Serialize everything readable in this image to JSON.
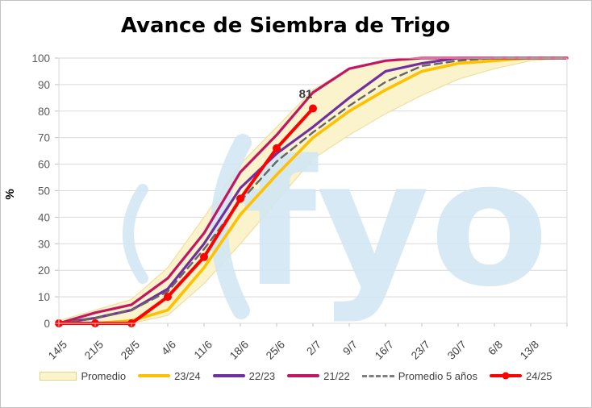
{
  "title": "Avance de Siembra de Trigo",
  "watermark": {
    "text": "fyo",
    "color": "#D3E7F3"
  },
  "annotation": {
    "text": "81",
    "series": "24/25",
    "category": "2/7",
    "value": 81
  },
  "colors": {
    "gridline": "#D9D9D9",
    "plot_border": "#D9D9D9",
    "axis_tick": "#BFBFBF",
    "y_tick_text": "#595959",
    "x_tick_text": "#404040",
    "annotation_text": "#3a3a3a"
  },
  "legend": {
    "items": [
      {
        "label": "Promedio",
        "swatch": "band",
        "color": "#FBF3CC",
        "border": "#E3D48A"
      },
      {
        "label": "23/24",
        "swatch": "line",
        "color": "#FFC000"
      },
      {
        "label": "22/23",
        "swatch": "line",
        "color": "#7030A0"
      },
      {
        "label": "21/22",
        "swatch": "line",
        "color": "#C31662"
      },
      {
        "label": "Promedio 5 años",
        "swatch": "dashed",
        "color": "#7F7F7F"
      },
      {
        "label": "24/25",
        "swatch": "line-marker",
        "color": "#FF0000"
      }
    ]
  },
  "chart_data": {
    "type": "line",
    "title": "Avance de Siembra de Trigo",
    "xlabel": "",
    "ylabel": "%",
    "ylim": [
      0,
      100
    ],
    "y_ticks": [
      0,
      10,
      20,
      30,
      40,
      50,
      60,
      70,
      80,
      90,
      100
    ],
    "grid": true,
    "legend_position": "bottom",
    "categories": [
      "14/5",
      "21/5",
      "28/5",
      "4/6",
      "11/6",
      "18/6",
      "25/6",
      "2/7",
      "9/7",
      "16/7",
      "23/7",
      "30/7",
      "6/8",
      "13/8",
      ""
    ],
    "note": "last category is the unlabeled plot right edge where all series reach 100",
    "series": [
      {
        "name": "Promedio",
        "type": "band",
        "fill": "#FBF3CC",
        "border": "#EFE09C",
        "upper": [
          1,
          5,
          9,
          21,
          40,
          60,
          74,
          88,
          96,
          99,
          100,
          100,
          100,
          100,
          100
        ],
        "lower": [
          0,
          0,
          0,
          3,
          15,
          30,
          46,
          62,
          71,
          79,
          86,
          92,
          96,
          99,
          100
        ]
      },
      {
        "name": "23/24",
        "type": "line",
        "color": "#FFC000",
        "width": 3.6,
        "values": [
          0,
          0,
          1,
          5,
          21,
          41,
          56,
          70,
          80,
          88,
          95,
          98,
          99,
          100,
          100
        ]
      },
      {
        "name": "22/23",
        "type": "line",
        "color": "#7030A0",
        "width": 3.2,
        "values": [
          0,
          2,
          5,
          13,
          30,
          51,
          64,
          74,
          85,
          95,
          98,
          100,
          100,
          100,
          100
        ]
      },
      {
        "name": "21/22",
        "type": "line",
        "color": "#C31662",
        "width": 3.2,
        "values": [
          0,
          4,
          7,
          17,
          34,
          57,
          71,
          87,
          96,
          99,
          100,
          100,
          100,
          100,
          100
        ]
      },
      {
        "name": "Promedio 5 años",
        "type": "line",
        "color": "#666666",
        "width": 2.4,
        "dash": "9 6",
        "values": [
          0,
          2,
          5,
          12,
          28,
          46,
          61,
          72,
          82,
          91,
          97,
          99,
          100,
          100,
          100
        ]
      },
      {
        "name": "24/25",
        "type": "line",
        "color": "#FF0000",
        "width": 4,
        "marker": true,
        "marker_radius": 5,
        "label_last_point": "81",
        "values": [
          0,
          0,
          0,
          10,
          25,
          47,
          66,
          81
        ]
      }
    ]
  }
}
